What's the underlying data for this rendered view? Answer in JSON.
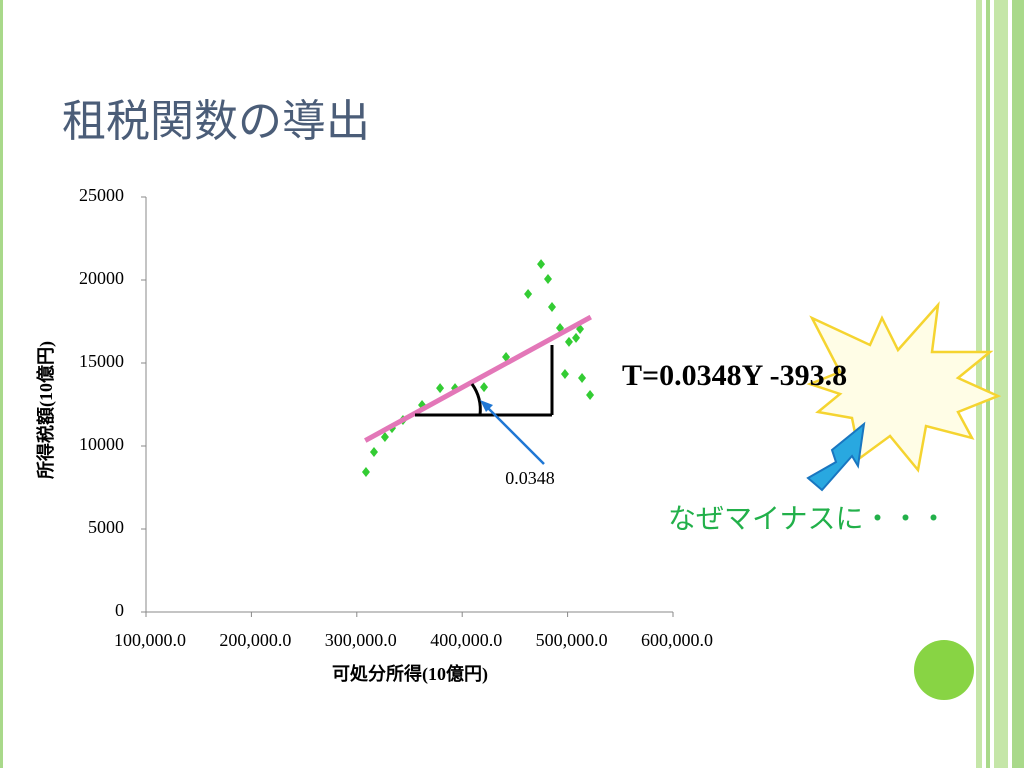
{
  "slide_title": "租税関数の導出",
  "chart_data": {
    "type": "scatter",
    "x_label": "可処分所得(10億円)",
    "y_label": "所得税額(10億円)",
    "x": [
      308700,
      316300,
      326700,
      333400,
      343800,
      361900,
      379000,
      393200,
      420700,
      441600,
      462500,
      474800,
      481400,
      485200,
      492800,
      497500,
      501300,
      508000,
      511800,
      513700,
      521300
    ],
    "values": [
      8430,
      9640,
      10540,
      11080,
      11570,
      12470,
      13490,
      13490,
      13550,
      15360,
      19160,
      20960,
      20060,
      18370,
      17110,
      14340,
      16270,
      16510,
      17050,
      14100,
      13070
    ],
    "color": "#33cc33",
    "trendline": {
      "x": [
        308000,
        522000
      ],
      "values": [
        10330,
        17770
      ],
      "color": "#e377b8"
    },
    "xlim": [
      100000,
      600000
    ],
    "xticks": [
      {
        "value": 100000,
        "label": "100,000.0"
      },
      {
        "value": 200000,
        "label": "200,000.0"
      },
      {
        "value": 300000,
        "label": "300,000.0"
      },
      {
        "value": 400000,
        "label": "400,000.0"
      },
      {
        "value": 500000,
        "label": "500,000.0"
      },
      {
        "value": 600000,
        "label": "600,000.0"
      }
    ],
    "ylim": [
      0,
      25000
    ],
    "yticks": [
      0,
      5000,
      10000,
      15000,
      20000,
      25000
    ],
    "slope_label": "0.0348",
    "equation": "T=0.0348Y -393.8",
    "question": "なぜマイナスに・・・"
  }
}
